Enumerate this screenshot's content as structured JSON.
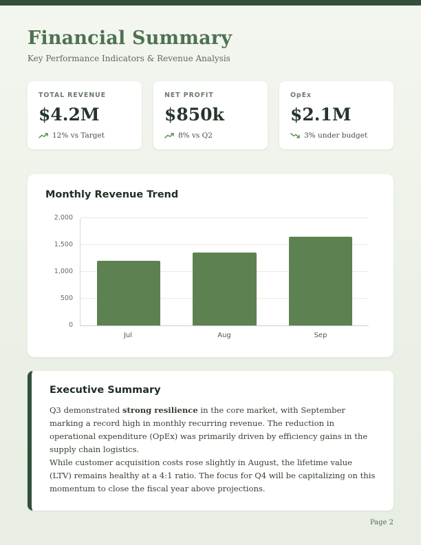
{
  "header": {
    "title": "Financial Summary",
    "subtitle": "Key Performance Indicators & Revenue Analysis"
  },
  "kpis": [
    {
      "label": "TOTAL REVENUE",
      "value": "$4.2M",
      "trend": "12% vs Target",
      "direction": "up"
    },
    {
      "label": "NET PROFIT",
      "value": "$850k",
      "trend": "8% vs Q2",
      "direction": "up"
    },
    {
      "label": "OpEx",
      "value": "$2.1M",
      "trend": "3% under budget",
      "direction": "down"
    }
  ],
  "chart_card": {
    "title": "Monthly Revenue Trend"
  },
  "chart_data": {
    "type": "bar",
    "title": "Monthly Revenue Trend",
    "categories": [
      "Jul",
      "Aug",
      "Sep"
    ],
    "values": [
      1200,
      1350,
      1650
    ],
    "xlabel": "",
    "ylabel": "",
    "ylim": [
      0,
      2000
    ],
    "yticks": [
      0,
      500,
      1000,
      1500,
      2000
    ],
    "ytick_labels": [
      "0",
      "500",
      "1,000",
      "1,500",
      "2,000"
    ],
    "grid": true,
    "legend": "none",
    "bar_color": "#5d8151"
  },
  "summary": {
    "title": "Executive Summary",
    "p1_before": "Q3 demonstrated ",
    "p1_bold": "strong resilience",
    "p1_after": " in the core market, with September marking a record high in monthly recurring revenue. The reduction in operational expenditure (OpEx) was primarily driven by efficiency gains in the supply chain logistics.",
    "p2": "While customer acquisition costs rose slightly in August, the lifetime value (LTV) remains healthy at a 4:1 ratio. The focus for Q4 will be capitalizing on this momentum to close the fiscal year above projections."
  },
  "page": {
    "page_number_label": "Page 2"
  },
  "colors": {
    "accent_dark_green": "#32503a",
    "title_green": "#4e7152",
    "bar_green": "#5d8151",
    "trend_green": "#69945c"
  }
}
